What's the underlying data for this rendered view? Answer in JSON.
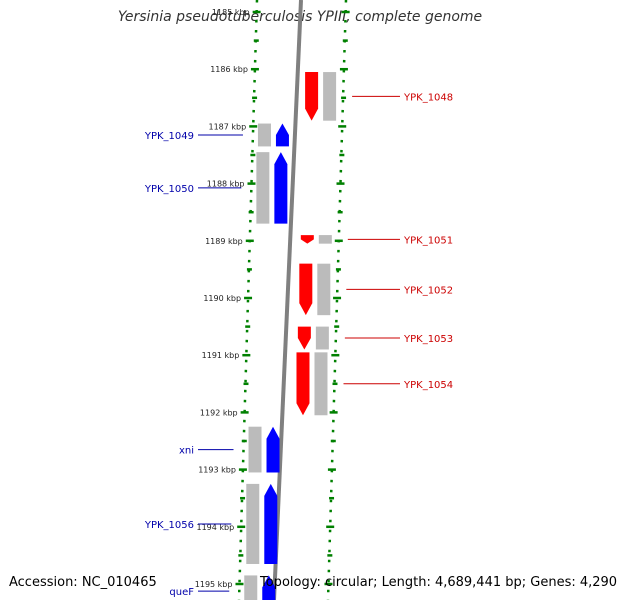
{
  "title": "Yersinia pseudotuberculosis YPIII, complete genome",
  "footer": {
    "accession": "Accession: NC_010465",
    "summary": "Topology: circular; Length: 4,689,441 bp; Genes: 4,290"
  },
  "ticks": [
    {
      "label": "1185 kbp",
      "kbp": 1185
    },
    {
      "label": "1186 kbp",
      "kbp": 1186
    },
    {
      "label": "1187 kbp",
      "kbp": 1187
    },
    {
      "label": "1188 kbp",
      "kbp": 1188
    },
    {
      "label": "1189 kbp",
      "kbp": 1189
    },
    {
      "label": "1190 kbp",
      "kbp": 1190
    },
    {
      "label": "1191 kbp",
      "kbp": 1191
    },
    {
      "label": "1192 kbp",
      "kbp": 1192
    },
    {
      "label": "1193 kbp",
      "kbp": 1193
    },
    {
      "label": "1194 kbp",
      "kbp": 1194
    },
    {
      "label": "1195 kbp",
      "kbp": 1195
    }
  ],
  "genes_forward": [
    {
      "name": "YPK_1048",
      "start_kbp": 1186.05,
      "end_kbp": 1186.9,
      "strand": "forward",
      "color": "#ff0000"
    },
    {
      "name": "YPK_1051",
      "start_kbp": 1188.9,
      "end_kbp": 1189.05,
      "strand": "forward",
      "color": "#ff0000"
    },
    {
      "name": "YPK_1052",
      "start_kbp": 1189.4,
      "end_kbp": 1190.3,
      "strand": "forward",
      "color": "#ff0000"
    },
    {
      "name": "YPK_1053",
      "start_kbp": 1190.5,
      "end_kbp": 1190.9,
      "strand": "forward",
      "color": "#ff0000"
    },
    {
      "name": "YPK_1054",
      "start_kbp": 1190.95,
      "end_kbp": 1192.05,
      "strand": "forward",
      "color": "#ff0000"
    }
  ],
  "genes_reverse": [
    {
      "name": "YPK_1049",
      "start_kbp": 1186.95,
      "end_kbp": 1187.35,
      "strand": "reverse",
      "color": "#0000ff"
    },
    {
      "name": "YPK_1050",
      "start_kbp": 1187.45,
      "end_kbp": 1188.7,
      "strand": "reverse",
      "color": "#0000ff"
    },
    {
      "name": "xni",
      "start_kbp": 1192.25,
      "end_kbp": 1193.05,
      "strand": "reverse",
      "color": "#0000ff"
    },
    {
      "name": "YPK_1056",
      "start_kbp": 1193.25,
      "end_kbp": 1194.65,
      "strand": "reverse",
      "color": "#0000ff"
    },
    {
      "name": "queF",
      "start_kbp": 1194.85,
      "end_kbp": 1195.4,
      "strand": "reverse",
      "color": "#0000ff"
    }
  ],
  "colors": {
    "forward_gene": "#ff0000",
    "reverse_gene": "#0000ff",
    "forward_label": "#cc0000",
    "reverse_label": "#0000aa",
    "tick": "#008000",
    "backbone": "#808080"
  }
}
